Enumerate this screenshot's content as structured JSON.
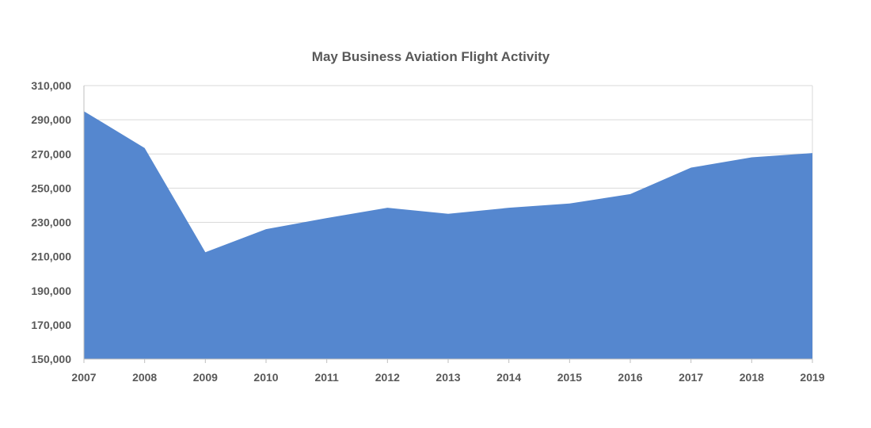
{
  "chart_data": {
    "type": "area",
    "title": "May Business Aviation Flight Activity",
    "xlabel": "",
    "ylabel": "",
    "categories": [
      "2007",
      "2008",
      "2009",
      "2010",
      "2011",
      "2012",
      "2013",
      "2014",
      "2015",
      "2016",
      "2017",
      "2018",
      "2019"
    ],
    "series": [
      {
        "values": [
          295000,
          273500,
          212500,
          226000,
          232500,
          238500,
          235000,
          238500,
          241000,
          246500,
          262000,
          268000,
          270500
        ]
      }
    ],
    "ylim": [
      150000,
      310000
    ],
    "y_ticks": [
      "150,000",
      "170,000",
      "190,000",
      "210,000",
      "230,000",
      "250,000",
      "270,000",
      "290,000",
      "310,000"
    ],
    "grid": true,
    "legend": "none",
    "colors": {
      "fill": "#5587cf",
      "grid": "#d9d9d9",
      "text": "#595959",
      "axis": "#bfbfbf"
    }
  }
}
